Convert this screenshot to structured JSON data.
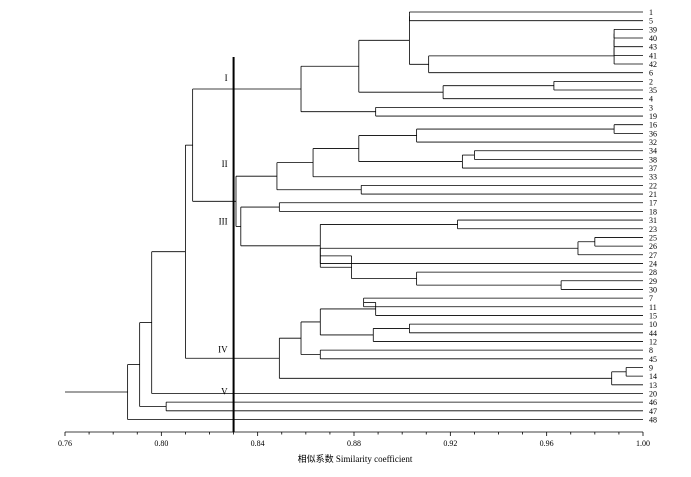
{
  "chart_data": {
    "type": "dendrogram",
    "orientation": "horizontal",
    "xlabel": "相似系数 Similarity coefficient",
    "xlim": [
      0.76,
      1.0
    ],
    "xticks": [
      "0.76",
      "0.80",
      "0.84",
      "0.88",
      "0.92",
      "0.96",
      "1.00"
    ],
    "cut_line_value": 0.83,
    "leaves": [
      "1",
      "5",
      "39",
      "40",
      "43",
      "41",
      "42",
      "6",
      "2",
      "35",
      "4",
      "3",
      "19",
      "16",
      "36",
      "32",
      "34",
      "38",
      "37",
      "33",
      "22",
      "21",
      "17",
      "18",
      "31",
      "23",
      "25",
      "26",
      "27",
      "24",
      "28",
      "29",
      "30",
      "7",
      "11",
      "15",
      "10",
      "44",
      "12",
      "8",
      "45",
      "9",
      "14",
      "13",
      "20",
      "46",
      "47",
      "48"
    ],
    "merges": [
      {
        "children": [
          "39",
          "40"
        ],
        "similarity": 0.988
      },
      {
        "children": [
          "c1",
          "43"
        ],
        "similarity": 0.988
      },
      {
        "children": [
          "c2",
          "41"
        ],
        "similarity": 0.988
      },
      {
        "children": [
          "c3",
          "42"
        ],
        "similarity": 0.988
      },
      {
        "children": [
          "c4",
          "6"
        ],
        "similarity": 0.911
      },
      {
        "children": [
          "1",
          "5"
        ],
        "similarity": 0.903
      },
      {
        "children": [
          "c6",
          "c5"
        ],
        "similarity": 0.903
      },
      {
        "children": [
          "2",
          "35"
        ],
        "similarity": 0.963
      },
      {
        "children": [
          "c8",
          "4"
        ],
        "similarity": 0.917
      },
      {
        "children": [
          "c7",
          "c9"
        ],
        "similarity": 0.882
      },
      {
        "children": [
          "3",
          "19"
        ],
        "similarity": 0.889
      },
      {
        "children": [
          "c10",
          "c11"
        ],
        "similarity": 0.858
      },
      {
        "children": [
          "16",
          "36"
        ],
        "similarity": 0.988
      },
      {
        "children": [
          "c13",
          "32"
        ],
        "similarity": 0.906
      },
      {
        "children": [
          "34",
          "38"
        ],
        "similarity": 0.93
      },
      {
        "children": [
          "c15",
          "37"
        ],
        "similarity": 0.925
      },
      {
        "children": [
          "c14",
          "c16"
        ],
        "similarity": 0.882
      },
      {
        "children": [
          "c17",
          "33"
        ],
        "similarity": 0.863
      },
      {
        "children": [
          "22",
          "21"
        ],
        "similarity": 0.883
      },
      {
        "children": [
          "c18",
          "c19"
        ],
        "similarity": 0.848
      },
      {
        "children": [
          "17",
          "18"
        ],
        "similarity": 0.849
      },
      {
        "children": [
          "31",
          "23"
        ],
        "similarity": 0.923
      },
      {
        "children": [
          "25",
          "26"
        ],
        "similarity": 0.98
      },
      {
        "children": [
          "c23",
          "27"
        ],
        "similarity": 0.973
      },
      {
        "children": [
          "c24",
          "24"
        ],
        "similarity": 0.866
      },
      {
        "children": [
          "29",
          "30"
        ],
        "similarity": 0.966
      },
      {
        "children": [
          "28",
          "c26"
        ],
        "similarity": 0.906
      },
      {
        "children": [
          "c25",
          "c27"
        ],
        "similarity": 0.879
      },
      {
        "children": [
          "c22",
          "c28"
        ],
        "similarity": 0.866
      },
      {
        "children": [
          "c29",
          "c28b"
        ],
        "similarity": 0.853
      },
      {
        "children": [
          "c21",
          "c30"
        ],
        "similarity": 0.833
      },
      {
        "children": [
          "c20",
          "c31"
        ],
        "similarity": 0.831
      },
      {
        "children": [
          "c12",
          "c32"
        ],
        "similarity": 0.813
      },
      {
        "children": [
          "7",
          "11"
        ],
        "similarity": 0.884
      },
      {
        "children": [
          "c34",
          "15"
        ],
        "similarity": 0.889
      },
      {
        "children": [
          "10",
          "44"
        ],
        "similarity": 0.903
      },
      {
        "children": [
          "c36",
          "12"
        ],
        "similarity": 0.888
      },
      {
        "children": [
          "c35",
          "c37"
        ],
        "similarity": 0.866
      },
      {
        "children": [
          "8",
          "45"
        ],
        "similarity": 0.866
      },
      {
        "children": [
          "c38",
          "c39"
        ],
        "similarity": 0.858
      },
      {
        "children": [
          "9",
          "14"
        ],
        "similarity": 0.993
      },
      {
        "children": [
          "c41",
          "13"
        ],
        "similarity": 0.987
      },
      {
        "children": [
          "c40",
          "c42"
        ],
        "similarity": 0.849
      },
      {
        "children": [
          "c33",
          "c43"
        ],
        "similarity": 0.81
      },
      {
        "children": [
          "c44",
          "20"
        ],
        "similarity": 0.796
      },
      {
        "children": [
          "46",
          "47"
        ],
        "similarity": 0.802
      },
      {
        "children": [
          "c45",
          "c46"
        ],
        "similarity": 0.791
      },
      {
        "children": [
          "c47",
          "48"
        ],
        "similarity": 0.786
      },
      {
        "children": [
          "c48",
          "root"
        ],
        "similarity": 0.76
      }
    ],
    "group_labels": [
      "I",
      "II",
      "III",
      "IV",
      "V"
    ]
  }
}
